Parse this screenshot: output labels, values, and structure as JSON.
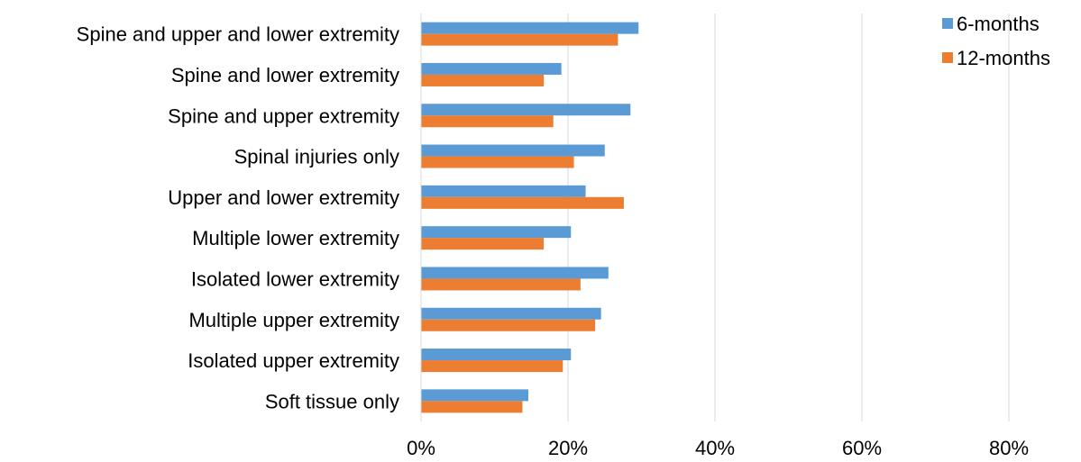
{
  "chart_data": {
    "type": "bar",
    "orientation": "horizontal",
    "categories": [
      "Spine and upper and lower extremity",
      "Spine and lower extremity",
      "Spine and upper extremity",
      "Spinal injuries only",
      "Upper and lower extremity",
      "Multiple lower extremity",
      "Isolated lower extremity",
      "Multiple upper extremity",
      "Isolated upper extremity",
      "Soft tissue only"
    ],
    "series": [
      {
        "name": "6-months",
        "color": "#5B9BD5",
        "values": [
          29.6,
          19.1,
          28.5,
          25.0,
          22.4,
          20.4,
          25.5,
          24.5,
          20.4,
          14.6
        ]
      },
      {
        "name": "12-months",
        "color": "#ED7D31",
        "values": [
          26.8,
          16.7,
          18.0,
          20.8,
          27.6,
          16.7,
          21.7,
          23.7,
          19.3,
          13.8
        ]
      }
    ],
    "xlim": [
      0,
      80
    ],
    "xticks": [
      0,
      20,
      40,
      60,
      80
    ],
    "tick_labels": [
      "0%",
      "20%",
      "40%",
      "60%",
      "80%"
    ],
    "grid": "vertical",
    "gridline_color": "#D9D9D9",
    "legend_position": "top-right",
    "title": "",
    "xlabel": "",
    "ylabel": ""
  }
}
